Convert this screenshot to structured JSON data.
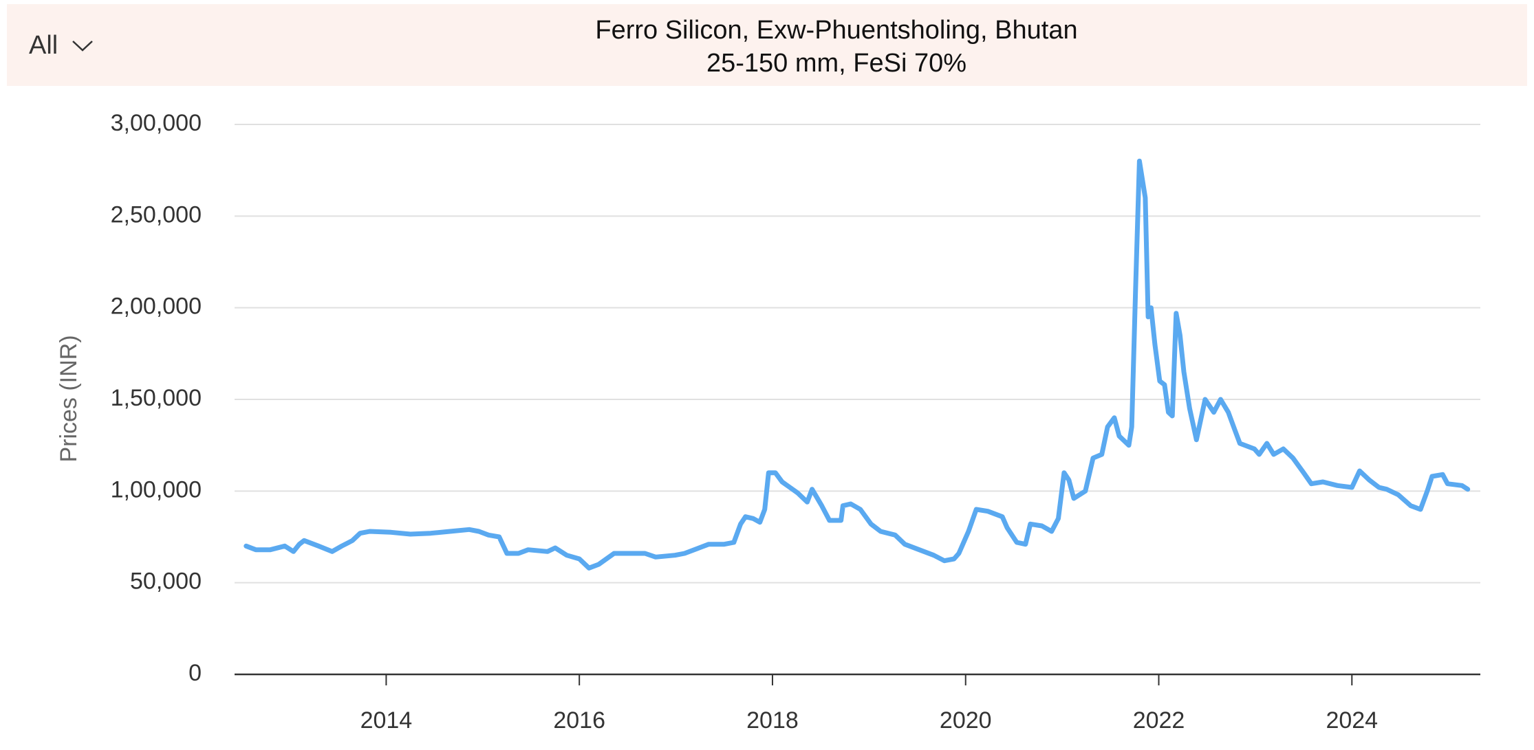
{
  "filter": "All",
  "chart_data": {
    "type": "line",
    "title": "Ferro Silicon, Exw-Phuentsholing, Bhutan",
    "subtitle": "25-150 mm, FeSi 70%",
    "y_label": "Prices (INR)",
    "xlim": [
      2012.43,
      2025.33
    ],
    "xticks": [
      2014,
      2016,
      2018,
      2020,
      2022,
      2024
    ],
    "ylim": [
      0,
      300000
    ],
    "yticks": [
      0,
      {
        "value": 50000,
        "label": "50,000"
      },
      {
        "value": 100000,
        "label": "1,00,000"
      },
      {
        "value": 150000,
        "label": "1,50,000"
      },
      {
        "value": 200000,
        "label": "2,00,000"
      },
      {
        "value": 250000,
        "label": "2,50,000"
      },
      {
        "value": 300000,
        "label": "3,00,000"
      }
    ],
    "grid": true,
    "series": [
      {
        "color": "#5aa9f0",
        "x": [
          2012.55,
          2012.65,
          2012.8,
          2012.95,
          2013.04,
          2013.1,
          2013.15,
          2013.3,
          2013.44,
          2013.54,
          2013.65,
          2013.73,
          2013.83,
          2014.05,
          2014.25,
          2014.46,
          2014.66,
          2014.86,
          2014.96,
          2015.06,
          2015.17,
          2015.25,
          2015.37,
          2015.47,
          2015.67,
          2015.75,
          2015.87,
          2016.0,
          2016.1,
          2016.2,
          2016.28,
          2016.36,
          2016.68,
          2016.79,
          2016.99,
          2017.09,
          2017.24,
          2017.34,
          2017.5,
          2017.6,
          2017.67,
          2017.72,
          2017.8,
          2017.87,
          2017.92,
          2017.96,
          2018.03,
          2018.1,
          2018.26,
          2018.36,
          2018.41,
          2018.51,
          2018.59,
          2018.71,
          2018.73,
          2018.81,
          2018.91,
          2019.02,
          2019.12,
          2019.27,
          2019.37,
          2019.52,
          2019.67,
          2019.78,
          2019.88,
          2019.93,
          2020.03,
          2020.11,
          2020.23,
          2020.38,
          2020.43,
          2020.53,
          2020.62,
          2020.67,
          2020.79,
          2020.89,
          2020.96,
          2021.02,
          2021.07,
          2021.12,
          2021.24,
          2021.32,
          2021.41,
          2021.47,
          2021.54,
          2021.59,
          2021.69,
          2021.72,
          2021.76,
          2021.8,
          2021.86,
          2021.89,
          2021.92,
          2021.96,
          2022.01,
          2022.06,
          2022.1,
          2022.14,
          2022.18,
          2022.22,
          2022.26,
          2022.32,
          2022.39,
          2022.48,
          2022.57,
          2022.64,
          2022.72,
          2022.79,
          2022.84,
          2022.99,
          2023.04,
          2023.12,
          2023.19,
          2023.29,
          2023.39,
          2023.5,
          2023.58,
          2023.7,
          2023.85,
          2024.0,
          2024.08,
          2024.18,
          2024.28,
          2024.36,
          2024.48,
          2024.61,
          2024.71,
          2024.78,
          2024.83,
          2024.94,
          2024.99,
          2025.14,
          2025.2
        ],
        "values": [
          70000,
          68000,
          68000,
          70000,
          67000,
          71000,
          73000,
          70000,
          67000,
          70000,
          73000,
          77000,
          78000,
          77500,
          76500,
          77000,
          78000,
          79000,
          78000,
          76000,
          75000,
          66000,
          66000,
          68000,
          67000,
          69000,
          65000,
          63000,
          58000,
          60000,
          63000,
          66000,
          66000,
          64000,
          65000,
          66000,
          69000,
          71000,
          71000,
          72000,
          82000,
          86000,
          85000,
          83000,
          90000,
          110000,
          110000,
          105000,
          99000,
          94000,
          101000,
          92000,
          84000,
          84000,
          92000,
          93000,
          90000,
          82000,
          78000,
          76000,
          71000,
          68000,
          65000,
          62000,
          63000,
          66000,
          78000,
          90000,
          89000,
          86000,
          80000,
          72000,
          71000,
          82000,
          81000,
          78000,
          85000,
          110000,
          106000,
          96000,
          100000,
          118000,
          120000,
          135000,
          140000,
          130000,
          125000,
          135000,
          210000,
          280000,
          260000,
          195000,
          200000,
          180000,
          160000,
          158000,
          143000,
          141000,
          197000,
          185000,
          165000,
          145000,
          128000,
          150000,
          143000,
          150000,
          143000,
          133000,
          126000,
          123000,
          120000,
          126000,
          120000,
          123000,
          118000,
          110000,
          104000,
          105000,
          103000,
          102000,
          111000,
          106000,
          102000,
          101000,
          98000,
          92000,
          90000,
          100000,
          108000,
          109000,
          104000,
          103000,
          101000
        ]
      }
    ]
  }
}
